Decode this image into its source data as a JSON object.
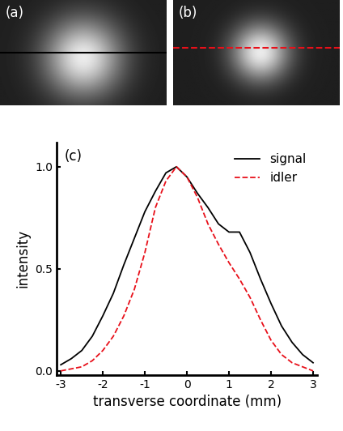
{
  "images": [
    {
      "label": "(a)"
    },
    {
      "label": "(b)"
    }
  ],
  "chart_data": {
    "type": "line",
    "annotations": [
      "(c)"
    ],
    "x_label": "transverse coordinate (mm)",
    "y_label": "intensity",
    "x": [
      -3,
      -2.75,
      -2.5,
      -2.25,
      -2,
      -1.75,
      -1.5,
      -1.25,
      -1,
      -0.75,
      -0.5,
      -0.25,
      0,
      0.25,
      0.5,
      0.75,
      1,
      1.25,
      1.5,
      1.75,
      2,
      2.25,
      2.5,
      2.75,
      3
    ],
    "series": [
      {
        "name": "signal",
        "color": "#000000",
        "line_style": "solid",
        "values": [
          0.03,
          0.06,
          0.1,
          0.17,
          0.27,
          0.38,
          0.52,
          0.65,
          0.78,
          0.88,
          0.97,
          1.0,
          0.95,
          0.87,
          0.8,
          0.72,
          0.68,
          0.68,
          0.58,
          0.45,
          0.33,
          0.22,
          0.14,
          0.08,
          0.04
        ]
      },
      {
        "name": "idler",
        "color": "#e8101a",
        "line_style": "dashed",
        "values": [
          0.0,
          0.01,
          0.02,
          0.05,
          0.1,
          0.17,
          0.27,
          0.4,
          0.58,
          0.8,
          0.93,
          1.0,
          0.95,
          0.85,
          0.72,
          0.62,
          0.53,
          0.45,
          0.36,
          0.25,
          0.15,
          0.08,
          0.04,
          0.02,
          0.0
        ]
      }
    ],
    "xlim": [
      -3.1,
      3.1
    ],
    "xticks": [
      -3,
      -2,
      -1,
      0,
      1,
      2,
      3
    ],
    "ylim": [
      -0.02,
      1.12
    ],
    "yticks": [
      {
        "value": 0,
        "label": "0.0"
      },
      {
        "value": 0.5,
        "label": "0.5"
      },
      {
        "value": 1,
        "label": "1.0"
      }
    ],
    "legend": "upper right",
    "grid": false
  }
}
